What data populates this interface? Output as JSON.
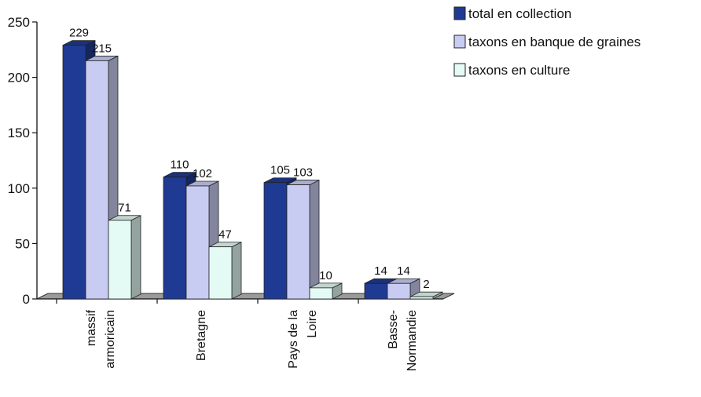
{
  "chart_data": {
    "type": "bar",
    "title": "",
    "xlabel": "",
    "ylabel": "",
    "ylim": [
      0,
      250
    ],
    "yticks": [
      0,
      50,
      100,
      150,
      200,
      250
    ],
    "categories": [
      [
        "massif",
        "armoricain"
      ],
      [
        "Bretagne"
      ],
      [
        "Pays de la",
        "Loire"
      ],
      [
        "Basse-",
        "Normandie"
      ]
    ],
    "series": [
      {
        "name": "total en collection",
        "values": [
          229,
          110,
          105,
          14
        ],
        "color": "#1f3a93"
      },
      {
        "name": "taxons en banque de graines",
        "values": [
          215,
          102,
          103,
          14
        ],
        "color": "#c9ccf2"
      },
      {
        "name": "taxons en culture",
        "values": [
          71,
          47,
          10,
          2
        ],
        "color": "#e3fbf4"
      }
    ],
    "legend_position": "top-right",
    "grid": false,
    "style": "3d-clustered-bar"
  }
}
